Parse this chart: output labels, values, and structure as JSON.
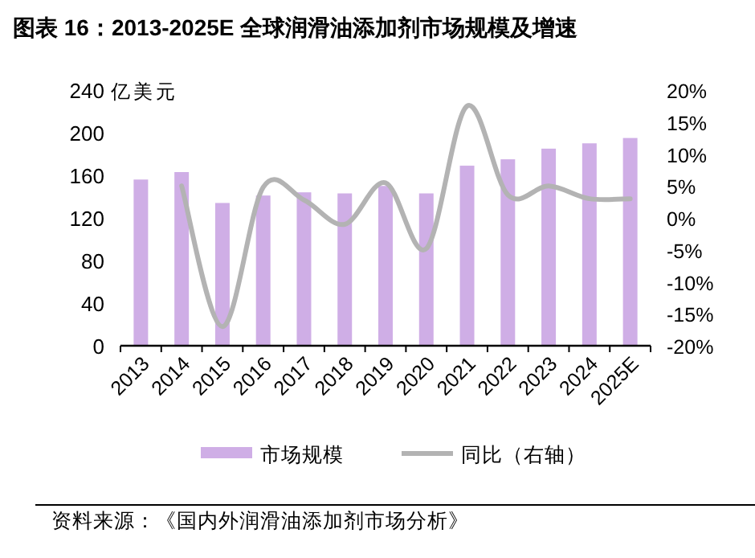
{
  "chart_data": {
    "type": "bar",
    "title": "图表 16：2013-2025E 全球润滑油添加剂市场规模及增速",
    "ylabel": "亿美元",
    "categories": [
      "2013",
      "2014",
      "2015",
      "2016",
      "2017",
      "2018",
      "2019",
      "2020",
      "2021",
      "2022",
      "2023",
      "2024",
      "2025E"
    ],
    "series": [
      {
        "name": "市场规模",
        "color": "#cfaee6",
        "values": [
          156,
          163,
          134,
          141,
          144,
          143,
          150,
          143,
          169,
          175,
          185,
          190,
          195
        ]
      },
      {
        "name": "同比（右轴）",
        "type": "line",
        "axis": "y2",
        "color": "#b3b3b3",
        "values": [
          null,
          5,
          -17,
          4.8,
          2.8,
          -1,
          5.5,
          -4.8,
          17.5,
          3.6,
          5,
          3,
          3
        ]
      }
    ],
    "ylim": [
      0,
      240
    ],
    "yticks": [
      0,
      40,
      80,
      120,
      160,
      200,
      240
    ],
    "y2lim": [
      -20,
      20
    ],
    "y2ticks": [
      {
        "value": -20,
        "label": "-20%"
      },
      {
        "value": -15,
        "label": "-15%"
      },
      {
        "value": -10,
        "label": "-10%"
      },
      {
        "value": -5,
        "label": "-5%"
      },
      {
        "value": 0,
        "label": "0%"
      },
      {
        "value": 5,
        "label": "5%"
      },
      {
        "value": 10,
        "label": "10%"
      },
      {
        "value": 15,
        "label": "15%"
      },
      {
        "value": 20,
        "label": "20%"
      }
    ],
    "legend": "bottom",
    "grid": false,
    "annotations": [
      "资料来源：《国内外润滑油添加剂市场分析》"
    ]
  }
}
